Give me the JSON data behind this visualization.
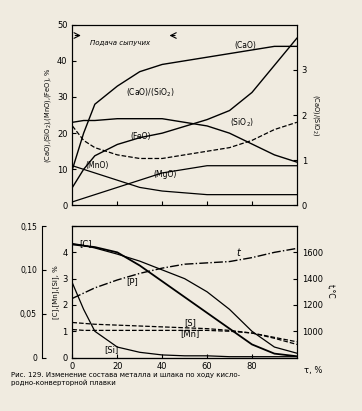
{
  "bg_color": "#f0ebe0",
  "fig_width": 3.62,
  "fig_height": 4.11,
  "x": [
    0,
    5,
    10,
    20,
    30,
    40,
    50,
    60,
    70,
    80,
    90,
    100
  ],
  "CaO": [
    10,
    20,
    28,
    33,
    37,
    39,
    40,
    41,
    42,
    43,
    44,
    44
  ],
  "SiO2": [
    23,
    23.5,
    23.5,
    24,
    24,
    24,
    23,
    22,
    20,
    17,
    14,
    12
  ],
  "FeO": [
    22,
    18,
    16,
    14,
    13,
    13,
    14,
    15,
    16,
    18,
    21,
    23
  ],
  "MnO": [
    11,
    10,
    9,
    7,
    5,
    4,
    3.5,
    3,
    3,
    3,
    3,
    3
  ],
  "MgO": [
    1,
    2,
    3,
    5,
    7,
    9,
    10,
    11,
    11,
    11,
    11,
    11
  ],
  "ratio": [
    0.4,
    0.8,
    1.1,
    1.35,
    1.5,
    1.6,
    1.75,
    1.9,
    2.1,
    2.5,
    3.1,
    3.7
  ],
  "C": [
    4.3,
    4.25,
    4.2,
    4.0,
    3.5,
    2.9,
    2.3,
    1.7,
    1.1,
    0.5,
    0.15,
    0.05
  ],
  "P": [
    0.13,
    0.128,
    0.125,
    0.118,
    0.11,
    0.1,
    0.09,
    0.075,
    0.055,
    0.03,
    0.012,
    0.005
  ],
  "S": [
    0.04,
    0.039,
    0.038,
    0.037,
    0.036,
    0.035,
    0.034,
    0.033,
    0.031,
    0.028,
    0.023,
    0.018
  ],
  "Mn": [
    0.032,
    0.031,
    0.031,
    0.031,
    0.031,
    0.031,
    0.031,
    0.031,
    0.03,
    0.028,
    0.022,
    0.015
  ],
  "Si": [
    0.085,
    0.055,
    0.03,
    0.012,
    0.006,
    0.003,
    0.002,
    0.002,
    0.001,
    0.001,
    0.001,
    0.001
  ],
  "temp": [
    1250,
    1290,
    1330,
    1390,
    1440,
    1480,
    1510,
    1520,
    1530,
    1560,
    1600,
    1630
  ]
}
